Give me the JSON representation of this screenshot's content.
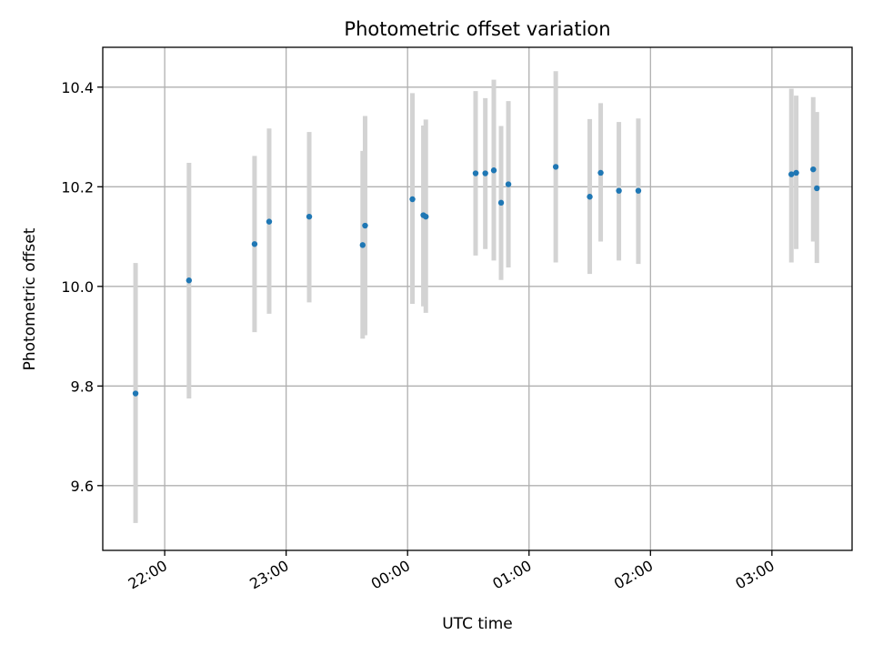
{
  "chart_data": {
    "type": "scatter",
    "title": "Photometric offset variation",
    "xlabel": "UTC time",
    "ylabel": "Photometric offset",
    "grid": true,
    "xlim": [
      21.49,
      27.66
    ],
    "ylim": [
      9.47,
      10.48
    ],
    "x_ticks": [
      {
        "value": 22.0,
        "label": "22:00"
      },
      {
        "value": 23.0,
        "label": "23:00"
      },
      {
        "value": 24.0,
        "label": "00:00"
      },
      {
        "value": 25.0,
        "label": "01:00"
      },
      {
        "value": 26.0,
        "label": "02:00"
      },
      {
        "value": 27.0,
        "label": "03:00"
      }
    ],
    "y_ticks": [
      {
        "value": 9.6,
        "label": "9.6"
      },
      {
        "value": 9.8,
        "label": "9.8"
      },
      {
        "value": 10.0,
        "label": "10.0"
      },
      {
        "value": 10.2,
        "label": "10.2"
      },
      {
        "value": 10.4,
        "label": "10.4"
      }
    ],
    "colors": {
      "point": "#1f77b4",
      "errorbar": "#d3d3d3",
      "grid": "#b0b0b0"
    },
    "points": [
      {
        "x": 21.76,
        "y": 9.785,
        "ylow": 9.525,
        "yhigh": 10.047
      },
      {
        "x": 22.2,
        "y": 10.012,
        "ylow": 9.775,
        "yhigh": 10.248
      },
      {
        "x": 22.74,
        "y": 10.085,
        "ylow": 9.908,
        "yhigh": 10.262
      },
      {
        "x": 22.86,
        "y": 10.13,
        "ylow": 9.945,
        "yhigh": 10.317
      },
      {
        "x": 23.19,
        "y": 10.14,
        "ylow": 9.968,
        "yhigh": 10.31
      },
      {
        "x": 23.63,
        "y": 10.083,
        "ylow": 9.895,
        "yhigh": 10.272
      },
      {
        "x": 23.65,
        "y": 10.122,
        "ylow": 9.902,
        "yhigh": 10.342
      },
      {
        "x": 24.04,
        "y": 10.175,
        "ylow": 9.965,
        "yhigh": 10.388
      },
      {
        "x": 24.13,
        "y": 10.143,
        "ylow": 9.96,
        "yhigh": 10.323
      },
      {
        "x": 24.15,
        "y": 10.14,
        "ylow": 9.947,
        "yhigh": 10.335
      },
      {
        "x": 24.56,
        "y": 10.227,
        "ylow": 10.062,
        "yhigh": 10.392
      },
      {
        "x": 24.64,
        "y": 10.227,
        "ylow": 10.075,
        "yhigh": 10.378
      },
      {
        "x": 24.71,
        "y": 10.233,
        "ylow": 10.052,
        "yhigh": 10.415
      },
      {
        "x": 24.77,
        "y": 10.168,
        "ylow": 10.013,
        "yhigh": 10.322
      },
      {
        "x": 24.83,
        "y": 10.205,
        "ylow": 10.038,
        "yhigh": 10.372
      },
      {
        "x": 25.22,
        "y": 10.24,
        "ylow": 10.048,
        "yhigh": 10.432
      },
      {
        "x": 25.5,
        "y": 10.18,
        "ylow": 10.025,
        "yhigh": 10.336
      },
      {
        "x": 25.59,
        "y": 10.228,
        "ylow": 10.09,
        "yhigh": 10.368
      },
      {
        "x": 25.74,
        "y": 10.192,
        "ylow": 10.052,
        "yhigh": 10.33
      },
      {
        "x": 25.9,
        "y": 10.192,
        "ylow": 10.045,
        "yhigh": 10.337
      },
      {
        "x": 27.16,
        "y": 10.225,
        "ylow": 10.048,
        "yhigh": 10.397
      },
      {
        "x": 27.2,
        "y": 10.228,
        "ylow": 10.075,
        "yhigh": 10.383
      },
      {
        "x": 27.34,
        "y": 10.235,
        "ylow": 10.09,
        "yhigh": 10.38
      },
      {
        "x": 27.37,
        "y": 10.197,
        "ylow": 10.047,
        "yhigh": 10.35
      }
    ]
  }
}
